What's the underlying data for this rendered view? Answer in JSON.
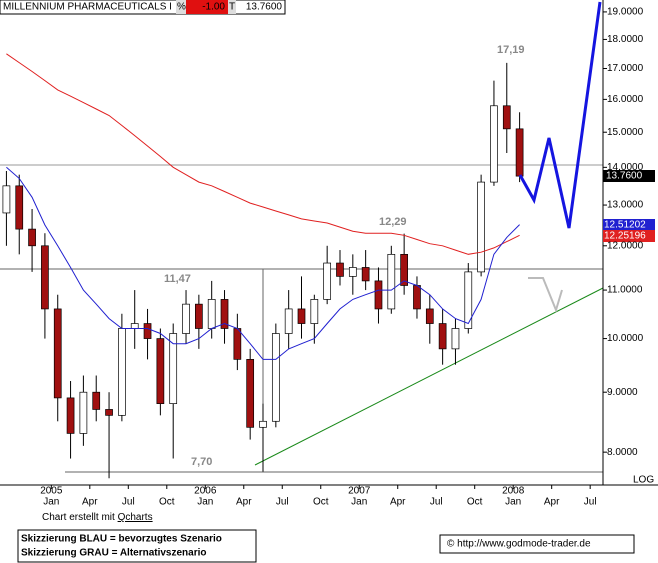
{
  "header": {
    "title": "MILLENNIUM PHARMACEUTICALS I",
    "pct_label": "%",
    "change": "-1.00",
    "t_label": "T",
    "last": "13.7600"
  },
  "chart_data": {
    "type": "candlestick",
    "log_scale": true,
    "grid": false,
    "x": [
      "2004-09",
      "2004-10",
      "2004-11",
      "2004-12",
      "2005-01",
      "2005-02",
      "2005-03",
      "2005-04",
      "2005-05",
      "2005-06",
      "2005-07",
      "2005-08",
      "2005-09",
      "2005-10",
      "2005-11",
      "2005-12",
      "2006-01",
      "2006-02",
      "2006-03",
      "2006-04",
      "2006-05",
      "2006-06",
      "2006-07",
      "2006-08",
      "2006-09",
      "2006-10",
      "2006-11",
      "2006-12",
      "2007-01",
      "2007-02",
      "2007-03",
      "2007-04",
      "2007-05",
      "2007-06",
      "2007-07",
      "2007-08",
      "2007-09",
      "2007-10",
      "2007-11",
      "2007-12",
      "2008-01"
    ],
    "open": [
      12.8,
      13.5,
      12.4,
      12.0,
      10.6,
      8.9,
      8.3,
      9.0,
      8.7,
      8.6,
      10.2,
      10.3,
      10.0,
      8.8,
      10.1,
      10.7,
      10.2,
      10.8,
      10.2,
      9.6,
      8.4,
      8.5,
      10.1,
      10.6,
      10.3,
      10.8,
      11.6,
      11.3,
      11.5,
      11.2,
      10.6,
      11.8,
      11.1,
      10.6,
      10.3,
      9.8,
      10.2,
      11.4,
      13.6,
      15.8,
      15.1
    ],
    "high": [
      13.9,
      13.8,
      12.9,
      12.3,
      10.9,
      9.2,
      9.3,
      9.3,
      9.0,
      10.5,
      11.0,
      10.6,
      10.2,
      10.3,
      11.0,
      10.9,
      11.2,
      11.0,
      10.5,
      9.8,
      8.8,
      10.3,
      11.0,
      11.3,
      10.9,
      12.0,
      11.9,
      11.8,
      11.9,
      11.5,
      12.0,
      12.29,
      11.3,
      10.9,
      10.6,
      10.4,
      11.6,
      13.8,
      16.6,
      17.19,
      15.6
    ],
    "low": [
      12.0,
      11.8,
      11.4,
      10.0,
      8.5,
      7.9,
      8.1,
      8.5,
      7.6,
      8.5,
      9.8,
      9.6,
      8.6,
      7.9,
      9.9,
      9.8,
      10.0,
      9.9,
      9.4,
      8.2,
      7.7,
      8.4,
      9.8,
      10.0,
      9.9,
      10.7,
      11.1,
      10.9,
      11.0,
      10.3,
      10.5,
      10.9,
      10.4,
      9.9,
      9.5,
      9.5,
      10.1,
      11.3,
      13.5,
      14.4,
      13.6
    ],
    "close": [
      13.5,
      12.4,
      12.0,
      10.6,
      8.9,
      8.3,
      9.0,
      8.7,
      8.6,
      10.2,
      10.3,
      10.0,
      8.8,
      10.1,
      10.7,
      10.2,
      10.8,
      10.2,
      9.6,
      8.4,
      8.5,
      10.1,
      10.6,
      10.3,
      10.8,
      11.6,
      11.3,
      11.5,
      11.2,
      10.6,
      11.8,
      11.1,
      10.6,
      10.3,
      9.8,
      10.2,
      11.4,
      13.6,
      15.8,
      15.1,
      13.76
    ],
    "up_color": "#ffffff",
    "down_color": "#a01010",
    "series": [
      {
        "color": "#e02020",
        "values": [
          17.5,
          17.2,
          16.9,
          16.6,
          16.3,
          16.1,
          15.9,
          15.7,
          15.5,
          15.2,
          14.9,
          14.6,
          14.3,
          14.0,
          13.8,
          13.6,
          13.5,
          13.35,
          13.2,
          13.05,
          12.95,
          12.85,
          12.75,
          12.65,
          12.6,
          12.55,
          12.45,
          12.35,
          12.3,
          12.3,
          12.3,
          12.25,
          12.15,
          12.05,
          12.0,
          11.9,
          11.8,
          11.85,
          11.95,
          12.1,
          12.25
        ],
        "last_label": "12.25196"
      },
      {
        "color": "#2020d0",
        "values": [
          14.0,
          13.7,
          13.2,
          12.5,
          12.0,
          11.5,
          11.0,
          10.7,
          10.4,
          10.2,
          10.2,
          10.2,
          10.1,
          9.9,
          9.9,
          10.0,
          10.2,
          10.3,
          10.2,
          9.9,
          9.6,
          9.6,
          9.8,
          9.9,
          10.0,
          10.3,
          10.6,
          10.8,
          10.9,
          11.0,
          11.0,
          11.2,
          11.1,
          10.9,
          10.6,
          10.4,
          10.3,
          10.8,
          11.8,
          12.2,
          12.51
        ],
        "last_label": "12.51202"
      }
    ],
    "xlim": [
      "2004-09",
      "2008-08"
    ],
    "xticks": [
      {
        "value": "2005-01",
        "label": "Jan"
      },
      {
        "value": "2005-04",
        "label": "Apr"
      },
      {
        "value": "2005-07",
        "label": "Jul"
      },
      {
        "value": "2005-10",
        "label": "Oct"
      },
      {
        "value": "2006-01",
        "label": "Jan"
      },
      {
        "value": "2006-04",
        "label": "Apr"
      },
      {
        "value": "2006-07",
        "label": "Jul"
      },
      {
        "value": "2006-10",
        "label": "Oct"
      },
      {
        "value": "2007-01",
        "label": "Jan"
      },
      {
        "value": "2007-04",
        "label": "Apr"
      },
      {
        "value": "2007-07",
        "label": "Jul"
      },
      {
        "value": "2007-10",
        "label": "Oct"
      },
      {
        "value": "2008-01",
        "label": "Jan"
      },
      {
        "value": "2008-04",
        "label": "Apr"
      },
      {
        "value": "2008-07",
        "label": "Jul"
      }
    ],
    "year_labels": [
      {
        "value": "2005-01",
        "label": "2005"
      },
      {
        "value": "2006-01",
        "label": "2006"
      },
      {
        "value": "2007-01",
        "label": "2007"
      },
      {
        "value": "2008-01",
        "label": "2008"
      }
    ],
    "ylim": [
      7.5,
      19.45
    ],
    "yticks": [
      {
        "value": 8,
        "label": "8.0000"
      },
      {
        "value": 9,
        "label": "9.0000"
      },
      {
        "value": 10,
        "label": "10.0000"
      },
      {
        "value": 11,
        "label": "11.0000"
      },
      {
        "value": 12,
        "label": "12.0000"
      },
      {
        "value": 13,
        "label": "13.0000"
      },
      {
        "value": 14,
        "label": "14.0000"
      },
      {
        "value": 15,
        "label": "15.0000"
      },
      {
        "value": 16,
        "label": "16.0000"
      },
      {
        "value": 17,
        "label": "17.0000"
      },
      {
        "value": 18,
        "label": "18.0000"
      },
      {
        "value": 19,
        "label": "19.0000"
      }
    ],
    "scale_label": "LOG",
    "annotations": [
      "17,19",
      "12,29",
      "11,47",
      "7,70"
    ]
  },
  "footer": {
    "credit": "Chart erstellt mit ",
    "credit_link": "Qcharts",
    "legend": [
      "Skizzierung BLAU = bevorzugtes Szenario",
      "Skizzierung GRAU = Alternativszenario"
    ],
    "url": "© http://www.godmode-trader.de"
  }
}
